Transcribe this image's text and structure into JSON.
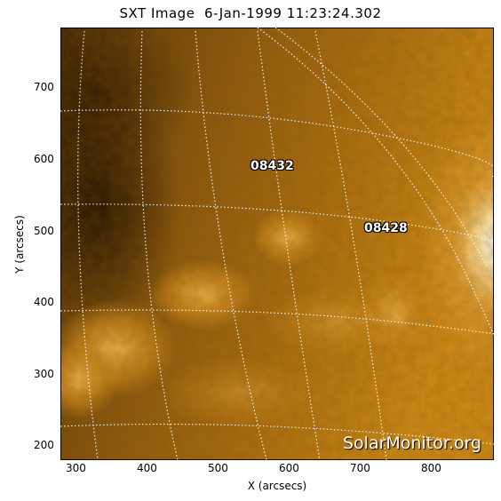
{
  "title": "SXT Image  6-Jan-1999 11:23:24.302",
  "x_axis_label": "X (arcsecs)",
  "y_axis_label": "Y (arcsecs)",
  "x_ticks": [
    "300",
    "400",
    "500",
    "600",
    "700",
    "800"
  ],
  "y_ticks": [
    "700",
    "600",
    "500",
    "400",
    "300",
    "200"
  ],
  "active_regions": [
    "08432",
    "08428"
  ],
  "watermark": "SolarMonitor.org",
  "colors": {
    "image_dark": "#3a1f04",
    "image_mid": "#a86a10",
    "image_bright": "#ffd67a",
    "grid": "#ffffff"
  }
}
